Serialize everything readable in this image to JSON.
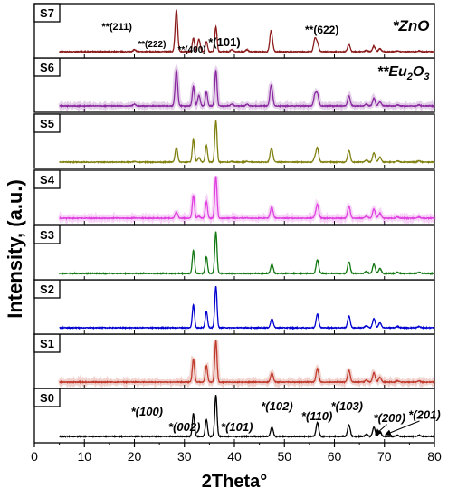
{
  "chart_data": {
    "type": "line",
    "xlabel": "2Theta°",
    "ylabel": "Intensity, (a.u.)",
    "xlim": [
      0,
      80
    ],
    "x_ticks": [
      0,
      10,
      20,
      30,
      40,
      50,
      60,
      70,
      80
    ],
    "x_tick_labels": [
      "0",
      "10",
      "20",
      "30",
      "40",
      "50",
      "60",
      "70",
      "80"
    ],
    "scan_range": [
      5,
      80
    ],
    "grid": false,
    "legend": [
      {
        "text": "*ZnO"
      },
      {
        "text": "**Eu",
        "sub": "2",
        "mid": "O",
        "sub2": "3"
      }
    ],
    "zno_peaks": [
      {
        "x": 31.8,
        "i": 0.55,
        "w": 0.22
      },
      {
        "x": 34.4,
        "i": 0.4,
        "w": 0.22
      },
      {
        "x": 36.3,
        "i": 1.0,
        "w": 0.22
      },
      {
        "x": 47.5,
        "i": 0.22,
        "w": 0.26
      },
      {
        "x": 56.6,
        "i": 0.33,
        "w": 0.26
      },
      {
        "x": 62.9,
        "i": 0.28,
        "w": 0.26
      },
      {
        "x": 66.4,
        "i": 0.05,
        "w": 0.26
      },
      {
        "x": 67.9,
        "i": 0.22,
        "w": 0.26
      },
      {
        "x": 69.1,
        "i": 0.12,
        "w": 0.26
      },
      {
        "x": 72.6,
        "i": 0.03,
        "w": 0.26
      },
      {
        "x": 76.9,
        "i": 0.03,
        "w": 0.26
      }
    ],
    "eu2o3_peaks": [
      {
        "x": 20.0,
        "i": 0.05,
        "w": 0.25
      },
      {
        "x": 28.4,
        "i": 1.0,
        "w": 0.25
      },
      {
        "x": 32.9,
        "i": 0.3,
        "w": 0.25
      },
      {
        "x": 39.5,
        "i": 0.05,
        "w": 0.25
      },
      {
        "x": 42.5,
        "i": 0.05,
        "w": 0.25
      },
      {
        "x": 47.3,
        "i": 0.4,
        "w": 0.25
      },
      {
        "x": 56.1,
        "i": 0.3,
        "w": 0.25
      }
    ],
    "series": [
      {
        "name": "S0",
        "color": "#000000",
        "zno": 1.0,
        "eu": 0.0,
        "band": false
      },
      {
        "name": "S1",
        "color": "#c0392b",
        "zno": 1.0,
        "eu": 0.0,
        "band": true
      },
      {
        "name": "S2",
        "color": "#0000d0",
        "zno": 1.0,
        "eu": 0.0,
        "band": false
      },
      {
        "name": "S3",
        "color": "#117711",
        "zno": 1.0,
        "eu": 0.0,
        "band": false
      },
      {
        "name": "S4",
        "color": "#e040e0",
        "zno": 1.0,
        "eu": 0.15,
        "band": true
      },
      {
        "name": "S5",
        "color": "#808010",
        "zno": 1.0,
        "eu": 0.35,
        "band": false
      },
      {
        "name": "S6",
        "color": "#8a2aa0",
        "zno": 0.85,
        "eu": 0.85,
        "band": true
      },
      {
        "name": "S7",
        "color": "#8b1a1a",
        "zno": 0.6,
        "eu": 1.0,
        "band": false
      }
    ],
    "annotations": [
      {
        "panel": "S7",
        "text": "**(211)",
        "x": 16.5,
        "y": 0.48,
        "size": 11
      },
      {
        "panel": "S7",
        "text": "**(222)",
        "x": 23.5,
        "y": 0.8,
        "size": 10
      },
      {
        "panel": "S7",
        "text": "**(400)",
        "x": 31.5,
        "y": 0.9,
        "size": 10
      },
      {
        "panel": "S7",
        "text": "*(101)",
        "x": 38.0,
        "y": 0.78,
        "size": 13
      },
      {
        "panel": "S7",
        "text": "**(622)",
        "x": 57.5,
        "y": 0.55,
        "size": 12
      },
      {
        "panel": "S0",
        "text": "*(100)",
        "x": 22.5,
        "y": 0.5,
        "size": 13,
        "italic": true
      },
      {
        "panel": "S0",
        "text": "*(002)",
        "x": 30.0,
        "y": 0.78,
        "size": 13,
        "italic": true
      },
      {
        "panel": "S0",
        "text": "*(101)",
        "x": 40.5,
        "y": 0.78,
        "size": 13,
        "italic": true
      },
      {
        "panel": "S0",
        "text": "*(102)",
        "x": 48.5,
        "y": 0.4,
        "size": 13,
        "italic": true
      },
      {
        "panel": "S0",
        "text": "*(110)",
        "x": 56.5,
        "y": 0.58,
        "size": 13,
        "italic": true
      },
      {
        "panel": "S0",
        "text": "*(103)",
        "x": 62.5,
        "y": 0.4,
        "size": 13,
        "italic": true
      },
      {
        "panel": "S0",
        "text": "*(200)",
        "x": 71.0,
        "y": 0.62,
        "size": 13,
        "italic": true
      },
      {
        "panel": "S0",
        "text": "*(201)",
        "x": 78.0,
        "y": 0.56,
        "size": 13,
        "italic": true
      }
    ]
  }
}
